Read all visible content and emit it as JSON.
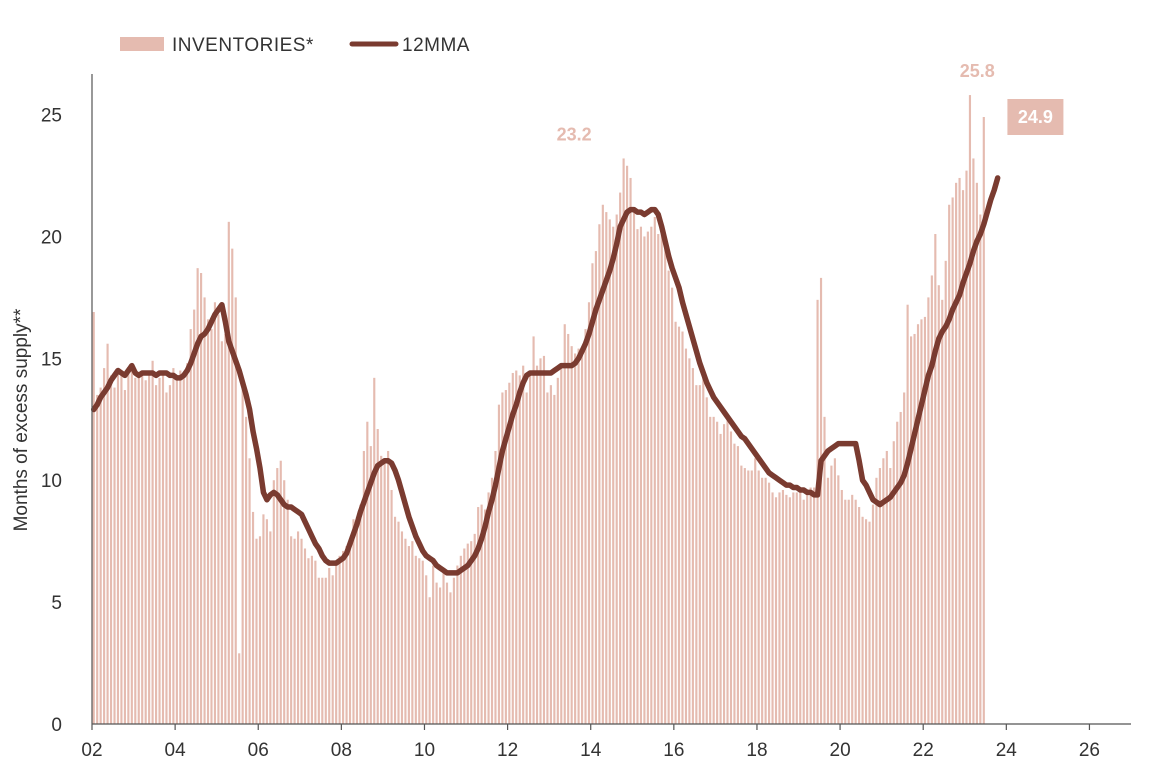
{
  "chart_data": {
    "type": "bar",
    "ylabel": "Months of excess supply**",
    "xlabel": "",
    "ylim": [
      0,
      26.5
    ],
    "xlim": [
      2002,
      2027
    ],
    "y_ticks": [
      "0",
      "5",
      "10",
      "15",
      "20",
      "25"
    ],
    "x_ticks": [
      {
        "year": 2002,
        "label": "02"
      },
      {
        "year": 2004,
        "label": "04"
      },
      {
        "year": 2006,
        "label": "06"
      },
      {
        "year": 2008,
        "label": "08"
      },
      {
        "year": 2010,
        "label": "10"
      },
      {
        "year": 2012,
        "label": "12"
      },
      {
        "year": 2014,
        "label": "14"
      },
      {
        "year": 2016,
        "label": "16"
      },
      {
        "year": 2018,
        "label": "18"
      },
      {
        "year": 2020,
        "label": "20"
      },
      {
        "year": 2022,
        "label": "22"
      },
      {
        "year": 2024,
        "label": "24"
      },
      {
        "year": 2026,
        "label": "26"
      }
    ],
    "legend": {
      "position": "top-left",
      "bars_label": "INVENTORIES*",
      "line_label": "12MMA"
    },
    "colors": {
      "bars": "#e5bbb0",
      "line": "#7a3b30",
      "last_box": "#e5bbb0",
      "axis": "#555555"
    },
    "grid": false,
    "series": [
      {
        "kind": "bar",
        "frequency": "monthly",
        "start_year": 2002,
        "values": [
          16.9,
          13.5,
          13.8,
          14.6,
          15.6,
          14.3,
          13.8,
          14.6,
          14.4,
          13.7,
          14.4,
          14.8,
          14.2,
          14.3,
          14.5,
          14.1,
          14.4,
          14.9,
          13.9,
          14.2,
          14.4,
          13.6,
          13.9,
          14.6,
          14.2,
          14.5,
          14.4,
          14.8,
          16.2,
          17.0,
          18.7,
          18.5,
          17.5,
          16.6,
          16.2,
          17.3,
          16.8,
          15.7,
          16.0,
          20.6,
          19.5,
          17.5,
          2.9,
          14.0,
          12.6,
          10.9,
          8.7,
          7.6,
          7.7,
          8.6,
          8.4,
          7.9,
          10.0,
          10.5,
          10.8,
          10.0,
          9.2,
          7.7,
          7.6,
          7.9,
          7.6,
          7.2,
          6.8,
          6.9,
          6.7,
          6.0,
          6.0,
          6.0,
          6.4,
          6.1,
          6.5,
          6.9,
          7.1,
          7.3,
          7.5,
          8.4,
          8.5,
          9.0,
          11.2,
          12.4,
          11.4,
          14.2,
          12.1,
          11.0,
          10.9,
          11.2,
          9.6,
          8.5,
          8.3,
          7.9,
          7.6,
          7.3,
          7.5,
          6.9,
          6.8,
          6.7,
          6.1,
          5.2,
          6.5,
          5.8,
          5.6,
          6.4,
          5.8,
          5.4,
          6.0,
          6.5,
          6.9,
          7.2,
          7.4,
          7.5,
          7.8,
          8.9,
          9.0,
          8.8,
          9.5,
          10.1,
          11.2,
          13.1,
          13.6,
          13.7,
          14.0,
          14.4,
          14.5,
          14.3,
          14.7,
          13.6,
          14.4,
          15.9,
          14.7,
          15.0,
          15.1,
          13.6,
          13.9,
          13.5,
          14.2,
          14.7,
          16.4,
          16.0,
          15.5,
          15.2,
          15.4,
          15.3,
          16.2,
          17.3,
          18.9,
          19.4,
          20.5,
          21.3,
          21.0,
          20.7,
          20.4,
          20.9,
          21.8,
          23.2,
          22.9,
          22.4,
          21.2,
          20.3,
          20.4,
          20.0,
          20.2,
          20.4,
          20.8,
          20.1,
          20.5,
          20.0,
          18.6,
          17.9,
          16.5,
          16.3,
          16.1,
          15.4,
          15.0,
          14.6,
          13.9,
          13.9,
          14.4,
          13.4,
          12.6,
          12.6,
          12.4,
          11.9,
          12.3,
          12.6,
          12.0,
          11.5,
          11.4,
          10.6,
          10.5,
          10.4,
          10.4,
          10.9,
          10.4,
          10.1,
          10.1,
          9.9,
          9.5,
          9.3,
          9.5,
          9.6,
          9.4,
          9.3,
          9.5,
          9.5,
          9.6,
          9.2,
          9.4,
          9.7,
          9.7,
          17.4,
          18.3,
          12.6,
          10.1,
          10.6,
          10.9,
          10.2,
          9.6,
          9.2,
          9.2,
          9.4,
          9.2,
          8.9,
          8.5,
          8.4,
          8.3,
          9.0,
          10.1,
          10.5,
          10.9,
          11.2,
          10.5,
          11.6,
          12.4,
          12.8,
          13.6,
          17.2,
          15.9,
          16.0,
          16.4,
          16.6,
          16.7,
          17.5,
          18.4,
          20.1,
          18.0,
          17.4,
          19.0,
          21.3,
          21.6,
          22.2,
          22.4,
          21.9,
          22.7,
          25.8,
          23.2,
          22.2,
          20.9,
          24.9
        ]
      },
      {
        "kind": "line",
        "frequency": "monthly",
        "start_year": 2002,
        "values": [
          12.9,
          13.1,
          13.4,
          13.6,
          13.8,
          14.1,
          14.3,
          14.5,
          14.4,
          14.3,
          14.5,
          14.7,
          14.4,
          14.3,
          14.4,
          14.4,
          14.4,
          14.4,
          14.3,
          14.4,
          14.4,
          14.4,
          14.3,
          14.3,
          14.2,
          14.2,
          14.3,
          14.5,
          14.8,
          15.2,
          15.6,
          15.9,
          16.0,
          16.2,
          16.5,
          16.8,
          17.0,
          17.2,
          16.5,
          15.7,
          15.3,
          14.9,
          14.5,
          14.0,
          13.5,
          12.9,
          12.0,
          11.3,
          10.5,
          9.5,
          9.2,
          9.4,
          9.5,
          9.4,
          9.2,
          9.0,
          8.9,
          8.9,
          8.8,
          8.7,
          8.6,
          8.3,
          8.0,
          7.7,
          7.4,
          7.2,
          6.9,
          6.7,
          6.6,
          6.6,
          6.6,
          6.7,
          6.8,
          7.0,
          7.4,
          7.8,
          8.2,
          8.7,
          9.1,
          9.5,
          9.9,
          10.3,
          10.6,
          10.7,
          10.8,
          10.8,
          10.7,
          10.4,
          10.0,
          9.5,
          9.0,
          8.5,
          8.1,
          7.7,
          7.4,
          7.1,
          6.9,
          6.8,
          6.7,
          6.5,
          6.4,
          6.3,
          6.2,
          6.2,
          6.2,
          6.2,
          6.3,
          6.4,
          6.5,
          6.7,
          6.9,
          7.2,
          7.6,
          8.1,
          8.7,
          9.2,
          9.8,
          10.5,
          11.2,
          11.7,
          12.2,
          12.7,
          13.1,
          13.6,
          14.0,
          14.3,
          14.4,
          14.4,
          14.4,
          14.4,
          14.4,
          14.4,
          14.4,
          14.5,
          14.6,
          14.7,
          14.7,
          14.7,
          14.7,
          14.8,
          15.0,
          15.3,
          15.6,
          16.0,
          16.5,
          17.0,
          17.4,
          17.8,
          18.2,
          18.6,
          19.1,
          19.7,
          20.4,
          20.7,
          21.0,
          21.1,
          21.1,
          21.0,
          21.0,
          20.9,
          21.0,
          21.1,
          21.1,
          20.9,
          20.4,
          19.8,
          19.2,
          18.7,
          18.3,
          17.9,
          17.3,
          16.8,
          16.3,
          15.8,
          15.3,
          14.8,
          14.4,
          14.0,
          13.7,
          13.4,
          13.2,
          13.0,
          12.8,
          12.6,
          12.4,
          12.2,
          12.0,
          11.8,
          11.7,
          11.5,
          11.3,
          11.1,
          10.9,
          10.7,
          10.5,
          10.3,
          10.2,
          10.1,
          10.0,
          9.9,
          9.8,
          9.8,
          9.7,
          9.7,
          9.6,
          9.6,
          9.5,
          9.5,
          9.4,
          9.4,
          10.8,
          11.0,
          11.2,
          11.3,
          11.4,
          11.5,
          11.5,
          11.5,
          11.5,
          11.5,
          11.5,
          10.8,
          10.0,
          9.8,
          9.5,
          9.2,
          9.1,
          9.0,
          9.1,
          9.2,
          9.3,
          9.5,
          9.7,
          9.9,
          10.2,
          10.7,
          11.3,
          11.9,
          12.5,
          13.1,
          13.7,
          14.3,
          14.7,
          15.3,
          15.8,
          16.1,
          16.3,
          16.6,
          17.0,
          17.3,
          17.6,
          18.1,
          18.5,
          18.9,
          19.4,
          19.8,
          20.1,
          20.5,
          21.0,
          21.5,
          21.9,
          22.4
        ]
      }
    ],
    "annotations": [
      {
        "text": "25.8",
        "year": 2023.3,
        "value": 25.8,
        "color": "#e5bbb0",
        "boxed": false
      },
      {
        "text": "23.2",
        "year": 2013.6,
        "value": 23.2,
        "color": "#e5bbb0",
        "boxed": false
      },
      {
        "text": "24.9",
        "year": 2024.7,
        "value": 24.9,
        "color": "#ffffff",
        "box_color": "#e5bbb0",
        "boxed": true
      }
    ]
  }
}
